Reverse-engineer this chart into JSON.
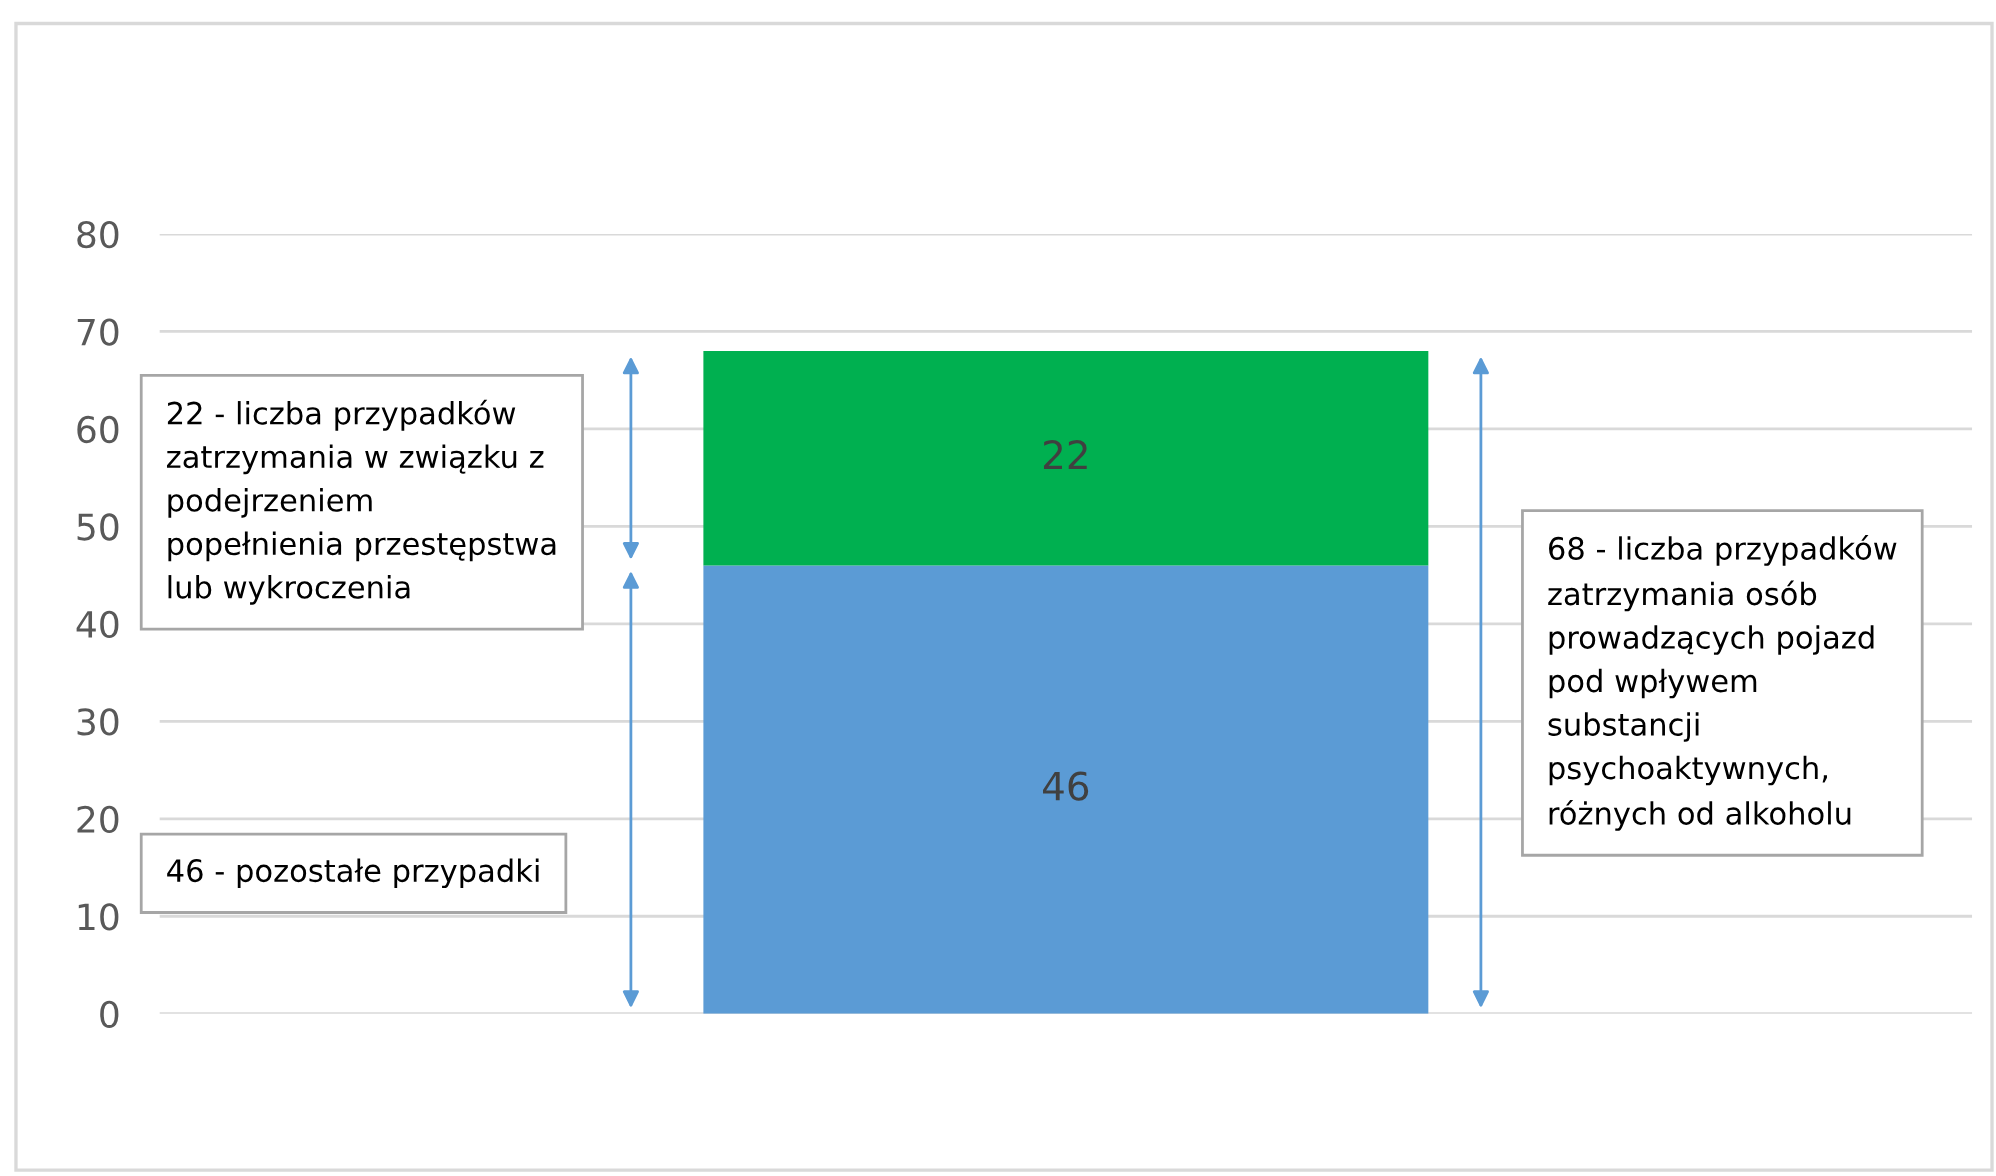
{
  "chart_data": {
    "type": "bar",
    "stacked": true,
    "categories": [
      null
    ],
    "series": [
      {
        "color": "#5b9bd5",
        "values": [
          46
        ]
      },
      {
        "color": "#00b050",
        "values": [
          22
        ]
      }
    ],
    "ylim": [
      0,
      80
    ],
    "yticks": [
      0,
      10,
      20,
      30,
      40,
      50,
      60,
      70,
      80
    ],
    "grid": "y",
    "data_labels": true,
    "tick_labels": "y",
    "annotations": [
      "22 - liczba przypadków zatrzymania w związku z podejrzeniem popełnienia przestępstwa lub wykroczenia",
      "46 - pozostałe przypadki",
      "68 - liczba przypadków zatrzymania osób prowadzących pojazd pod wpływem substancji psychoaktywnych, różnych od alkoholu"
    ]
  }
}
